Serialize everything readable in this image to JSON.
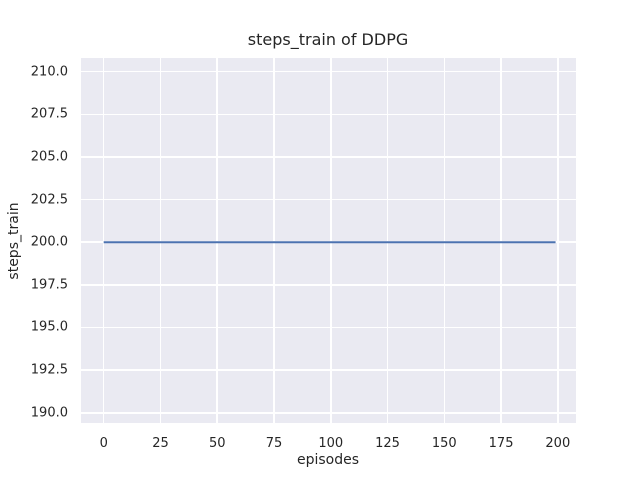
{
  "chart_data": {
    "type": "line",
    "title": "steps_train of DDPG",
    "xlabel": "episodes",
    "ylabel": "steps_train",
    "xlim": [
      -10,
      208
    ],
    "ylim": [
      189.4,
      210.8
    ],
    "xticks": [
      0,
      25,
      50,
      75,
      100,
      125,
      150,
      175,
      200
    ],
    "xtick_labels": [
      "0",
      "25",
      "50",
      "75",
      "100",
      "125",
      "150",
      "175",
      "200"
    ],
    "yticks": [
      190.0,
      192.5,
      195.0,
      197.5,
      200.0,
      202.5,
      205.0,
      207.5,
      210.0
    ],
    "ytick_labels": [
      "190.0",
      "192.5",
      "195.0",
      "197.5",
      "200.0",
      "202.5",
      "205.0",
      "207.5",
      "210.0"
    ],
    "grid": true,
    "legend": null,
    "colors": {
      "figure_background": "#FFFFFF",
      "plot_background": "#EAEAF2",
      "grid_color": "#FFFFFF",
      "text_color": "#262626"
    },
    "series": [
      {
        "name": "steps_train",
        "color": "#4C72B0",
        "constant": true,
        "x": [
          0,
          199
        ],
        "y": [
          200,
          200
        ]
      }
    ]
  }
}
